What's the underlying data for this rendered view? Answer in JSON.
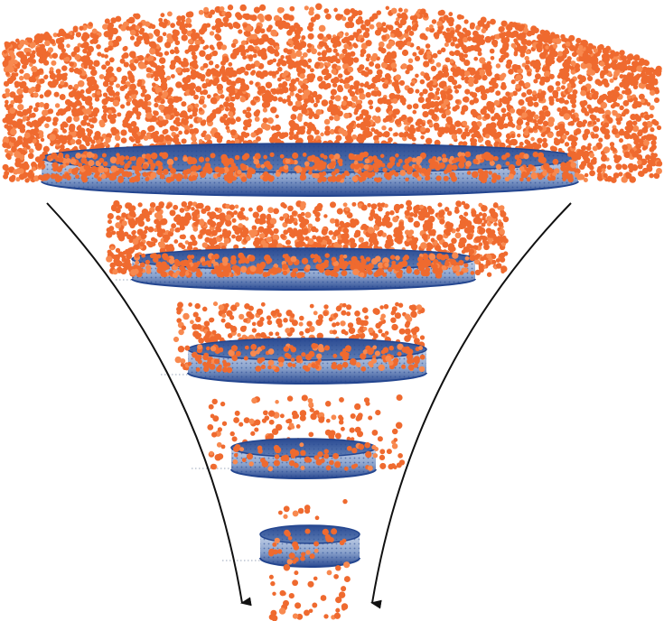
{
  "diagram": {
    "kind": "filtration funnel",
    "colors": {
      "particle": "#ef6a2f",
      "particle_highlight": "#f8894f",
      "disc_dark": "#23458f",
      "disc_mid": "#5f7fb6",
      "disc_light": "#c7d4ea",
      "arrow": "#111111",
      "leader": "#9aa6b8"
    },
    "stages": [
      {
        "id": "stage-1",
        "particle_density": 1.0
      },
      {
        "id": "stage-2",
        "particle_density": 0.24
      },
      {
        "id": "stage-3",
        "particle_density": 0.08
      },
      {
        "id": "stage-4",
        "particle_density": 0.035
      },
      {
        "id": "stage-5",
        "particle_density": 0.015
      }
    ],
    "arrows": [
      {
        "id": "left-arrow",
        "direction": "down"
      },
      {
        "id": "right-arrow",
        "direction": "down"
      }
    ]
  }
}
